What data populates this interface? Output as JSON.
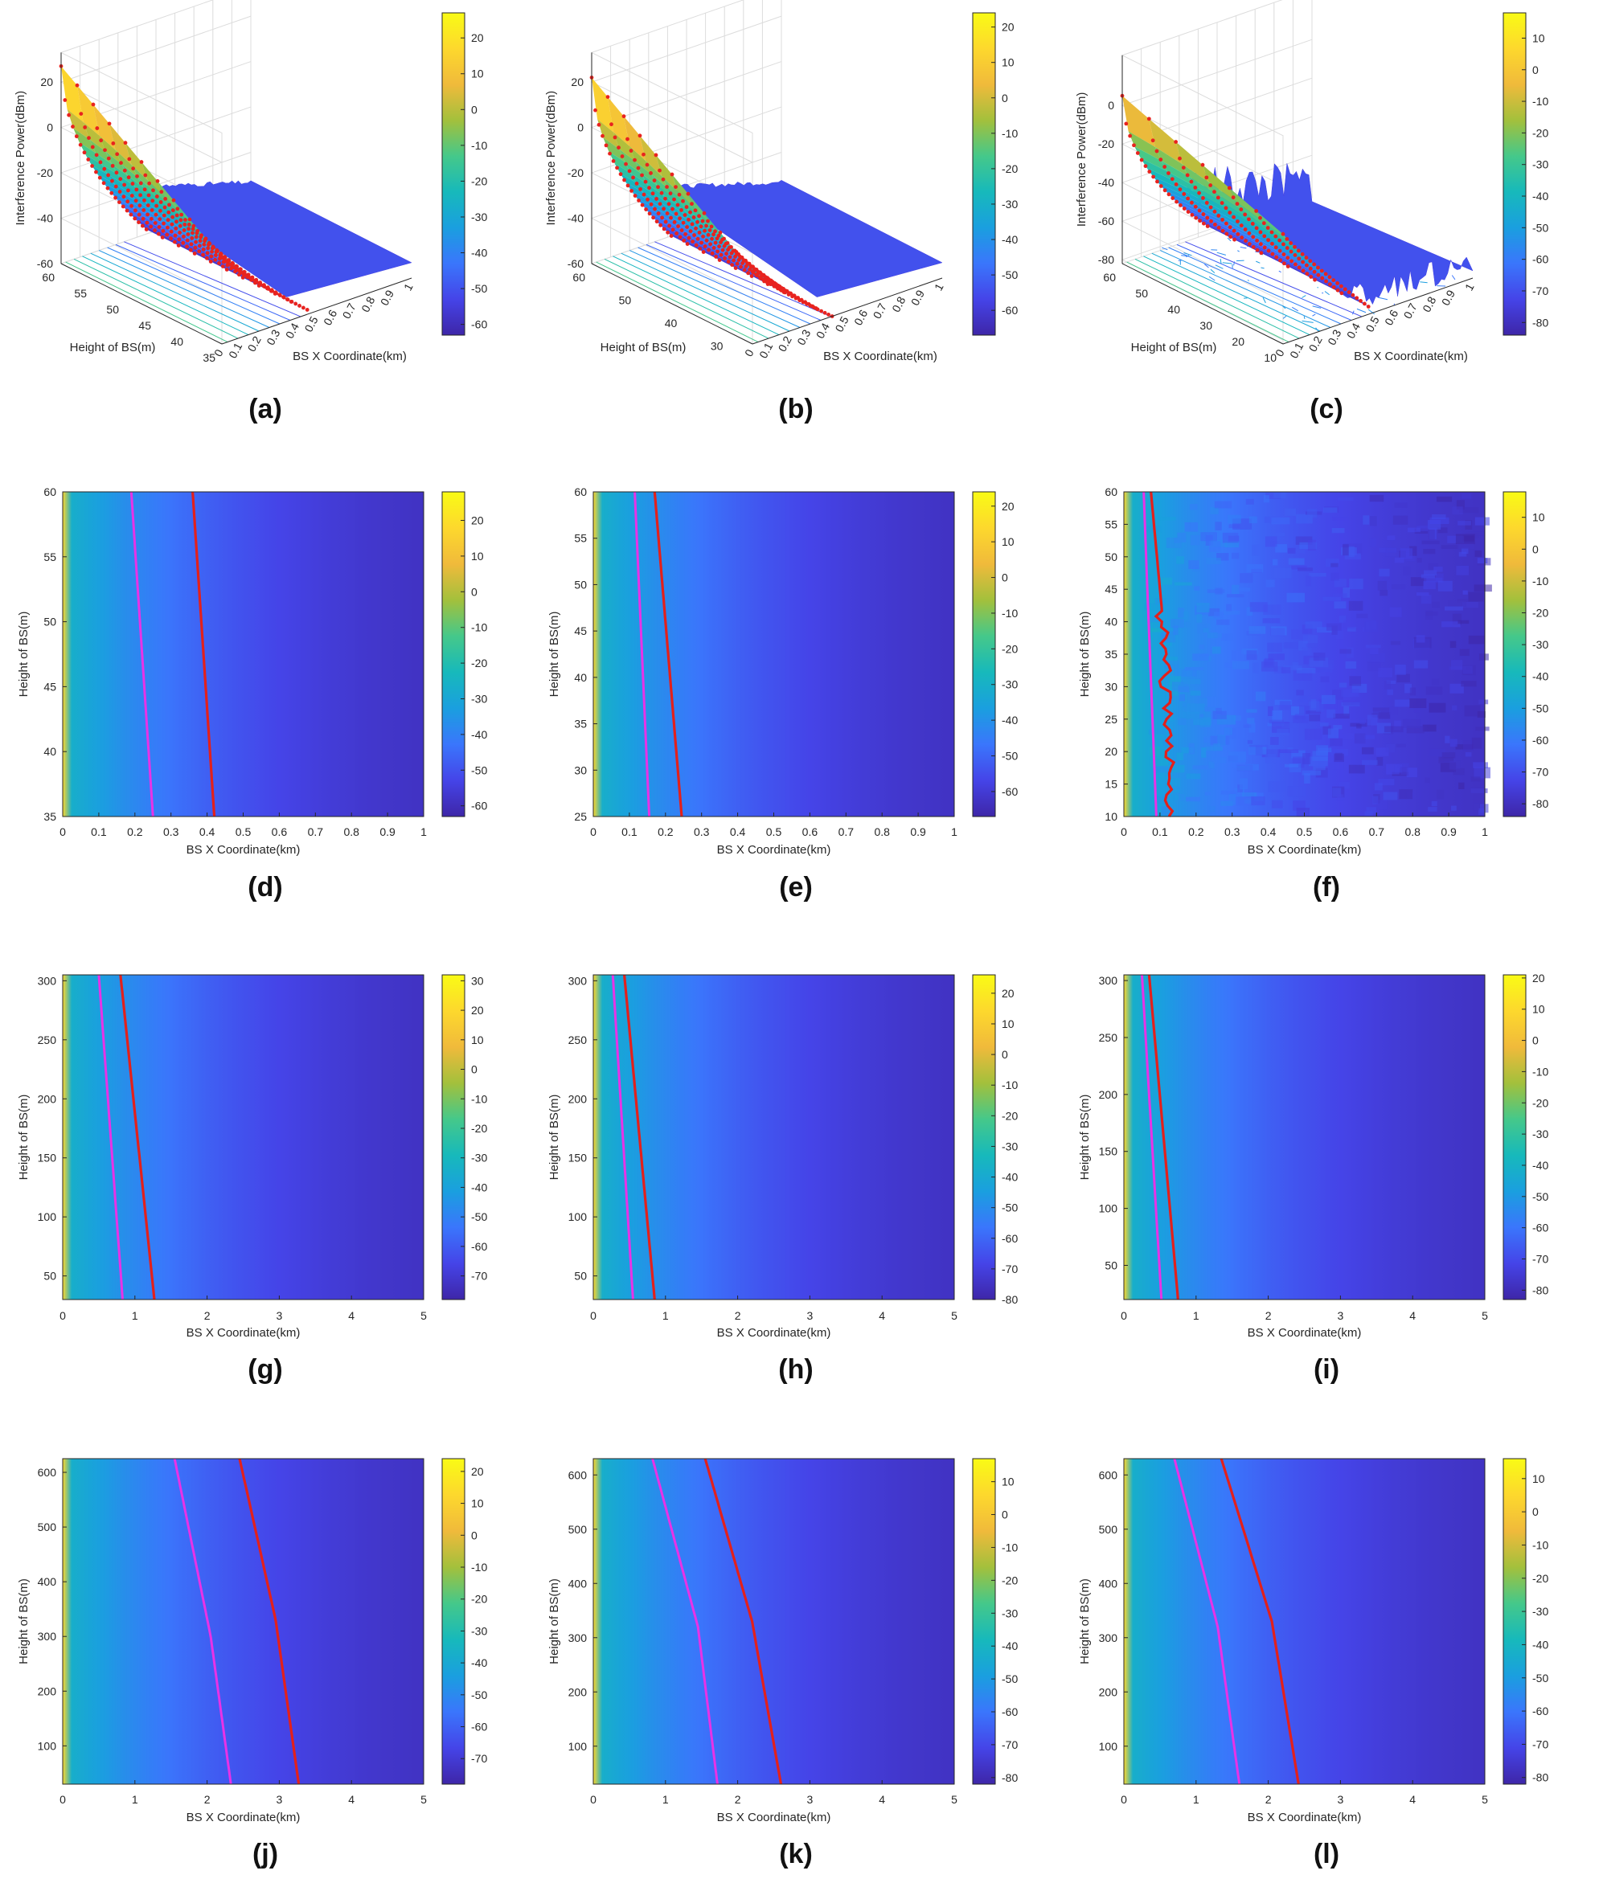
{
  "colormap": [
    "#3e26a8",
    "#4544e8",
    "#3a76fc",
    "#1a9fdf",
    "#17b9bb",
    "#45c88a",
    "#a3c03c",
    "#f0ba3b",
    "#fdd82d",
    "#f9fb15"
  ],
  "colors": {
    "dot": "#e8231f",
    "red_line": "#e3201b",
    "magenta_line": "#e832e6",
    "axis": "#262626",
    "grid": "#dcdcdc"
  },
  "chart_data": [
    {
      "id": "a",
      "type": "surface3d",
      "label": "(a)",
      "zlabel": "Interference Power(dBm)",
      "xlabel": "BS X Coordinate(km)",
      "ylabel": "Height of BS(m)",
      "zticks": [
        -60,
        -40,
        -20,
        0,
        20
      ],
      "zlim": [
        -60,
        25
      ],
      "xticks": [
        "0",
        "0.1",
        "0.2",
        "0.3",
        "0.4",
        "0.5",
        "0.6",
        "0.7",
        "0.8",
        "0.9",
        "1"
      ],
      "yticks": [
        "35",
        "40",
        "45",
        "50",
        "55",
        "60"
      ],
      "ylim": [
        35,
        60
      ],
      "cticks": [
        20,
        10,
        0,
        -10,
        -20,
        -30,
        -40,
        -50,
        -60
      ],
      "clim": [
        -63,
        27
      ],
      "dots": {
        "xmax": 0.45,
        "rows": 10,
        "z0_top": 27,
        "z0_bottom": -22,
        "z_end": -58
      },
      "noise": 0.05
    },
    {
      "id": "b",
      "type": "surface3d",
      "label": "(b)",
      "zlabel": "Interference Power(dBm)",
      "xlabel": "BS X Coordinate(km)",
      "ylabel": "Height of BS(m)",
      "zticks": [
        -60,
        -40,
        -20,
        0,
        20
      ],
      "zlim": [
        -60,
        25
      ],
      "xticks": [
        "0",
        "0.1",
        "0.2",
        "0.3",
        "0.4",
        "0.5",
        "0.6",
        "0.7",
        "0.8",
        "0.9",
        "1"
      ],
      "yticks": [
        "30",
        "40",
        "50",
        "60"
      ],
      "ylim": [
        25,
        60
      ],
      "cticks": [
        20,
        10,
        0,
        -10,
        -20,
        -30,
        -40,
        -50,
        -60
      ],
      "clim": [
        -67,
        24
      ],
      "dots": {
        "xmax": 0.42,
        "rows": 10,
        "z0_top": 22,
        "z0_bottom": -28,
        "z_end": -60
      },
      "noise": 0.05
    },
    {
      "id": "c",
      "type": "surface3d",
      "label": "(c)",
      "zlabel": "Interference Power(dBm)",
      "xlabel": "BS X Coordinate(km)",
      "ylabel": "Height of BS(m)",
      "zticks": [
        -80,
        -60,
        -40,
        -20,
        0
      ],
      "zlim": [
        -82,
        18
      ],
      "xticks": [
        "0",
        "0.1",
        "0.2",
        "0.3",
        "0.4",
        "0.5",
        "0.6",
        "0.7",
        "0.8",
        "0.9",
        "1"
      ],
      "yticks": [
        "10",
        "20",
        "30",
        "40",
        "50",
        "60"
      ],
      "ylim": [
        10,
        60
      ],
      "cticks": [
        10,
        0,
        -10,
        -20,
        -30,
        -40,
        -50,
        -60,
        -70,
        -80
      ],
      "clim": [
        -84,
        18
      ],
      "dots": {
        "xmax": 0.45,
        "rows": 6,
        "z0_top": 5,
        "z0_bottom": -25,
        "z_end": -78
      },
      "noise": 0.9
    },
    {
      "id": "d",
      "type": "heatmap",
      "label": "(d)",
      "xlabel": "BS X Coordinate(km)",
      "ylabel": "Height of BS(m)",
      "xlim": [
        0,
        1
      ],
      "ylim": [
        35,
        60
      ],
      "xticks": [
        "0",
        "0.1",
        "0.2",
        "0.3",
        "0.4",
        "0.5",
        "0.6",
        "0.7",
        "0.8",
        "0.9",
        "1"
      ],
      "yticks": [
        "35",
        "40",
        "45",
        "50",
        "55",
        "60"
      ],
      "cticks": [
        20,
        10,
        0,
        -10,
        -20,
        -30,
        -40,
        -50,
        -60
      ],
      "clim": [
        -63,
        28
      ],
      "magenta": [
        [
          0.25,
          35
        ],
        [
          0.19,
          60
        ]
      ],
      "red": [
        [
          0.42,
          35
        ],
        [
          0.36,
          60
        ]
      ],
      "noisy": false
    },
    {
      "id": "e",
      "type": "heatmap",
      "label": "(e)",
      "xlabel": "BS X Coordinate(km)",
      "ylabel": "Height of BS(m)",
      "xlim": [
        0,
        1
      ],
      "ylim": [
        25,
        60
      ],
      "xticks": [
        "0",
        "0.1",
        "0.2",
        "0.3",
        "0.4",
        "0.5",
        "0.6",
        "0.7",
        "0.8",
        "0.9",
        "1"
      ],
      "yticks": [
        "25",
        "30",
        "35",
        "40",
        "45",
        "50",
        "55",
        "60"
      ],
      "cticks": [
        20,
        10,
        0,
        -10,
        -20,
        -30,
        -40,
        -50,
        -60
      ],
      "clim": [
        -67,
        24
      ],
      "magenta": [
        [
          0.155,
          25
        ],
        [
          0.115,
          60
        ]
      ],
      "red": [
        [
          0.245,
          25
        ],
        [
          0.17,
          60
        ]
      ],
      "noisy": false
    },
    {
      "id": "f",
      "type": "heatmap",
      "label": "(f)",
      "xlabel": "BS X Coordinate(km)",
      "ylabel": "Height of BS(m)",
      "xlim": [
        0,
        1
      ],
      "ylim": [
        10,
        60
      ],
      "xticks": [
        "0",
        "0.1",
        "0.2",
        "0.3",
        "0.4",
        "0.5",
        "0.6",
        "0.7",
        "0.8",
        "0.9",
        "1"
      ],
      "yticks": [
        "10",
        "15",
        "20",
        "25",
        "30",
        "35",
        "40",
        "45",
        "50",
        "55",
        "60"
      ],
      "cticks": [
        10,
        0,
        -10,
        -20,
        -30,
        -40,
        -50,
        -60,
        -70,
        -80
      ],
      "clim": [
        -84,
        18
      ],
      "magenta": [
        [
          0.09,
          10
        ],
        [
          0.065,
          45
        ],
        [
          0.055,
          60
        ]
      ],
      "red": [
        [
          0.13,
          10
        ],
        [
          0.12,
          25
        ],
        [
          0.105,
          42
        ],
        [
          0.075,
          60
        ]
      ],
      "noisy": true
    },
    {
      "id": "g",
      "type": "heatmap",
      "label": "(g)",
      "xlabel": "BS X Coordinate(km)",
      "ylabel": "Height of BS(m)",
      "xlim": [
        0,
        5
      ],
      "ylim": [
        30,
        305
      ],
      "xticks": [
        "0",
        "1",
        "2",
        "3",
        "4",
        "5"
      ],
      "yticks": [
        "50",
        "100",
        "150",
        "200",
        "250",
        "300"
      ],
      "cticks": [
        30,
        20,
        10,
        0,
        -10,
        -20,
        -30,
        -40,
        -50,
        -60,
        -70
      ],
      "clim": [
        -78,
        32
      ],
      "magenta": [
        [
          0.83,
          30
        ],
        [
          0.5,
          305
        ]
      ],
      "red": [
        [
          1.27,
          30
        ],
        [
          0.8,
          305
        ]
      ],
      "noisy": false
    },
    {
      "id": "h",
      "type": "heatmap",
      "label": "(h)",
      "xlabel": "BS X Coordinate(km)",
      "ylabel": "Height of BS(m)",
      "xlim": [
        0,
        5
      ],
      "ylim": [
        30,
        305
      ],
      "xticks": [
        "0",
        "1",
        "2",
        "3",
        "4",
        "5"
      ],
      "yticks": [
        "50",
        "100",
        "150",
        "200",
        "250",
        "300"
      ],
      "cticks": [
        20,
        10,
        0,
        -10,
        -20,
        -30,
        -40,
        -50,
        -60,
        -70,
        -80
      ],
      "clim": [
        -80,
        26
      ],
      "magenta": [
        [
          0.55,
          30
        ],
        [
          0.27,
          305
        ]
      ],
      "red": [
        [
          0.85,
          30
        ],
        [
          0.43,
          305
        ]
      ],
      "noisy": false
    },
    {
      "id": "i",
      "type": "heatmap",
      "label": "(i)",
      "xlabel": "BS X Coordinate(km)",
      "ylabel": "Height of BS(m)",
      "xlim": [
        0,
        5
      ],
      "ylim": [
        20,
        305
      ],
      "xticks": [
        "0",
        "1",
        "2",
        "3",
        "4",
        "5"
      ],
      "yticks": [
        "50",
        "100",
        "150",
        "200",
        "250",
        "300"
      ],
      "cticks": [
        20,
        10,
        0,
        -10,
        -20,
        -30,
        -40,
        -50,
        -60,
        -70,
        -80
      ],
      "clim": [
        -83,
        21
      ],
      "magenta": [
        [
          0.52,
          20
        ],
        [
          0.25,
          305
        ]
      ],
      "red": [
        [
          0.75,
          20
        ],
        [
          0.35,
          305
        ]
      ],
      "noisy": false
    },
    {
      "id": "j",
      "type": "heatmap",
      "label": "(j)",
      "xlabel": "BS X Coordinate(km)",
      "ylabel": "Height of BS(m)",
      "xlim": [
        0,
        5
      ],
      "ylim": [
        30,
        625
      ],
      "xticks": [
        "0",
        "1",
        "2",
        "3",
        "4",
        "5"
      ],
      "yticks": [
        "100",
        "200",
        "300",
        "400",
        "500",
        "600"
      ],
      "cticks": [
        20,
        10,
        0,
        -10,
        -20,
        -30,
        -40,
        -50,
        -60,
        -70
      ],
      "clim": [
        -78,
        24
      ],
      "magenta": [
        [
          2.33,
          30
        ],
        [
          2.05,
          300
        ],
        [
          1.55,
          625
        ]
      ],
      "red": [
        [
          3.27,
          30
        ],
        [
          2.95,
          330
        ],
        [
          2.45,
          625
        ]
      ],
      "noisy": false
    },
    {
      "id": "k",
      "type": "heatmap",
      "label": "(k)",
      "xlabel": "BS X Coordinate(km)",
      "ylabel": "Height of BS(m)",
      "xlim": [
        0,
        5
      ],
      "ylim": [
        30,
        630
      ],
      "xticks": [
        "0",
        "1",
        "2",
        "3",
        "4",
        "5"
      ],
      "yticks": [
        "100",
        "200",
        "300",
        "400",
        "500",
        "600"
      ],
      "cticks": [
        10,
        0,
        -10,
        -20,
        -30,
        -40,
        -50,
        -60,
        -70,
        -80
      ],
      "clim": [
        -82,
        17
      ],
      "magenta": [
        [
          1.72,
          30
        ],
        [
          1.45,
          320
        ],
        [
          0.82,
          630
        ]
      ],
      "red": [
        [
          2.6,
          30
        ],
        [
          2.2,
          330
        ],
        [
          1.55,
          630
        ]
      ],
      "noisy": false
    },
    {
      "id": "l",
      "type": "heatmap",
      "label": "(l)",
      "xlabel": "BS X Coordinate(km)",
      "ylabel": "Height of BS(m)",
      "xlim": [
        0,
        5
      ],
      "ylim": [
        30,
        630
      ],
      "xticks": [
        "0",
        "1",
        "2",
        "3",
        "4",
        "5"
      ],
      "yticks": [
        "100",
        "200",
        "300",
        "400",
        "500",
        "600"
      ],
      "cticks": [
        10,
        0,
        -10,
        -20,
        -30,
        -40,
        -50,
        -60,
        -70,
        -80
      ],
      "clim": [
        -82,
        16
      ],
      "magenta": [
        [
          1.6,
          30
        ],
        [
          1.3,
          320
        ],
        [
          0.7,
          630
        ]
      ],
      "red": [
        [
          2.42,
          30
        ],
        [
          2.05,
          330
        ],
        [
          1.35,
          630
        ]
      ],
      "noisy": false
    }
  ]
}
